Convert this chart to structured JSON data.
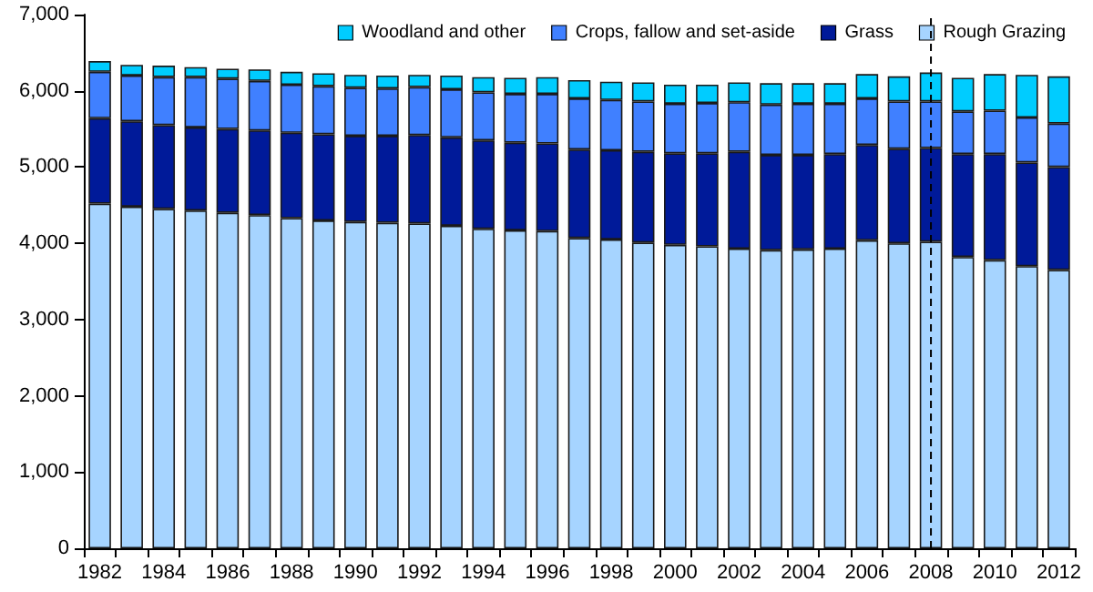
{
  "chart_data": {
    "type": "bar",
    "stacked": true,
    "categories": [
      "1982",
      null,
      "1984",
      null,
      "1986",
      null,
      "1988",
      null,
      "1990",
      null,
      "1992",
      null,
      "1994",
      null,
      "1996",
      null,
      "1998",
      null,
      "2000",
      null,
      "2002",
      null,
      "2004",
      null,
      "2006",
      null,
      "2008",
      null,
      "2010",
      null,
      "2012"
    ],
    "series": [
      {
        "name": "Rough Grazing",
        "color": "#a6d4ff",
        "values": [
          4520,
          4480,
          4450,
          4430,
          4400,
          4370,
          4330,
          4300,
          4280,
          4270,
          4260,
          4230,
          4190,
          4170,
          4160,
          4070,
          4050,
          4010,
          3980,
          3960,
          3930,
          3910,
          3920,
          3930,
          4040,
          4000,
          4020,
          3820,
          3780,
          3700,
          3650
        ]
      },
      {
        "name": "Grass",
        "color": "#001a99",
        "values": [
          1120,
          1120,
          1100,
          1090,
          1100,
          1110,
          1120,
          1130,
          1130,
          1140,
          1160,
          1160,
          1160,
          1150,
          1150,
          1160,
          1170,
          1190,
          1200,
          1220,
          1270,
          1250,
          1240,
          1240,
          1250,
          1240,
          1230,
          1350,
          1390,
          1360,
          1350
        ]
      },
      {
        "name": "Crops, fallow and set-aside",
        "color": "#4080ff",
        "values": [
          610,
          600,
          630,
          660,
          660,
          650,
          630,
          630,
          630,
          620,
          630,
          630,
          630,
          640,
          650,
          670,
          660,
          660,
          650,
          660,
          650,
          660,
          670,
          660,
          610,
          620,
          610,
          560,
          570,
          590,
          570
        ]
      },
      {
        "name": "Woodland and other",
        "color": "#00ccff",
        "values": [
          140,
          140,
          150,
          130,
          130,
          150,
          170,
          170,
          170,
          170,
          160,
          180,
          200,
          210,
          220,
          240,
          240,
          250,
          250,
          240,
          260,
          280,
          270,
          270,
          320,
          330,
          380,
          440,
          480,
          560,
          620
        ]
      }
    ],
    "ylim": [
      0,
      7000
    ],
    "yticks": [
      {
        "value": 0,
        "label": "0"
      },
      {
        "value": 1000,
        "label": "1,000"
      },
      {
        "value": 2000,
        "label": "2,000"
      },
      {
        "value": 3000,
        "label": "3,000"
      },
      {
        "value": 4000,
        "label": "4,000"
      },
      {
        "value": 5000,
        "label": "5,000"
      },
      {
        "value": 6000,
        "label": "6,000"
      },
      {
        "value": 7000,
        "label": "7,000"
      }
    ],
    "ref_lines": [
      {
        "axis": "x",
        "value": "2008",
        "label": null,
        "color": "#000000",
        "line_style": "dashed"
      }
    ],
    "grid": false,
    "legend": "top right"
  }
}
